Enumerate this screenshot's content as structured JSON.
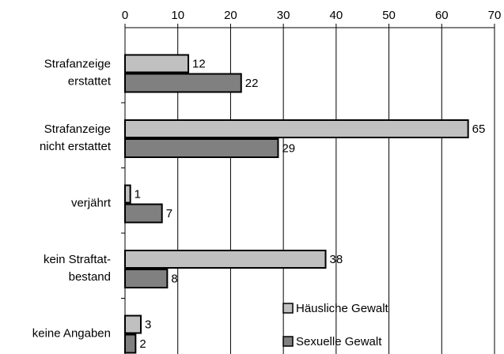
{
  "chart_data": {
    "type": "bar",
    "orientation": "horizontal",
    "categories": [
      [
        "Strafanzeige",
        "erstattet"
      ],
      [
        "Strafanzeige",
        "nicht erstattet"
      ],
      [
        "verjährt"
      ],
      [
        "kein Straftat-",
        "bestand"
      ],
      [
        "keine Angaben"
      ]
    ],
    "series": [
      {
        "name": "Häusliche Gewalt",
        "color": "#c0c0c0",
        "values": [
          12,
          65,
          1,
          38,
          3
        ]
      },
      {
        "name": "Sexuelle Gewalt",
        "color": "#808080",
        "values": [
          22,
          29,
          7,
          8,
          2
        ]
      }
    ],
    "xlim": [
      0,
      70
    ],
    "xticks": [
      0,
      10,
      20,
      30,
      40,
      50,
      60,
      70
    ],
    "grid": true,
    "legend": "lower right"
  }
}
